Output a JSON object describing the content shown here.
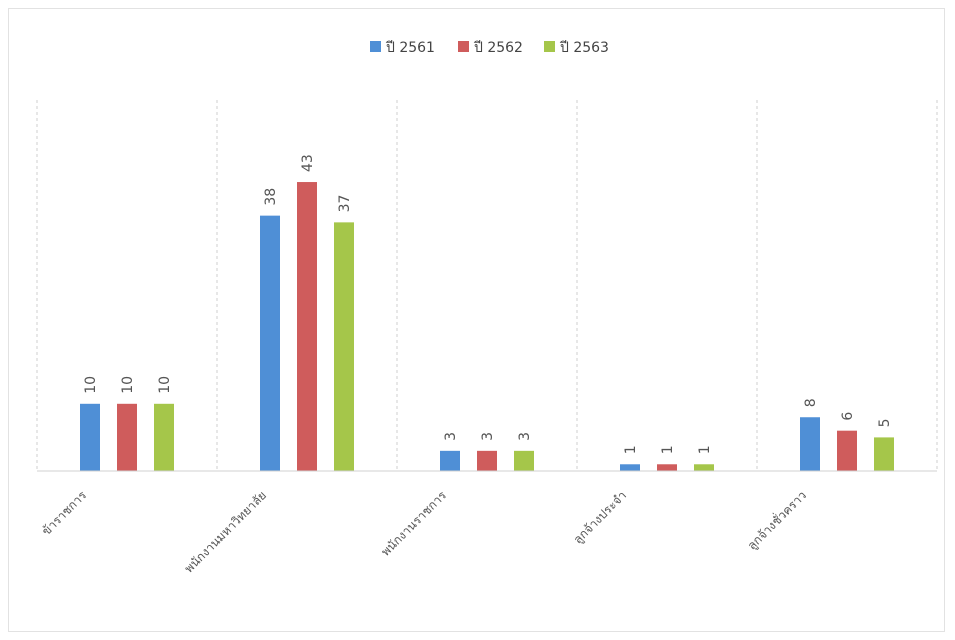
{
  "chart_data": {
    "type": "bar",
    "categories": [
      "ข้าราชการ",
      "พนักงานมหาวิทยาลัย",
      "พนักงานราชการ",
      "ลูกจ้างประจำ",
      "ลูกจ้างชั่วคราว"
    ],
    "series": [
      {
        "name": "ปี 2561",
        "values": [
          10,
          38,
          3,
          1,
          8
        ],
        "color": "#4f8fd6"
      },
      {
        "name": "ปี 2562",
        "values": [
          10,
          43,
          3,
          1,
          6
        ],
        "color": "#cf5c5c"
      },
      {
        "name": "ปี 2563",
        "values": [
          10,
          37,
          3,
          1,
          5
        ],
        "color": "#a5c64a"
      }
    ],
    "ylim": [
      0,
      50
    ],
    "legend": "top-center",
    "grid": "vertical-dashed-category-separators"
  }
}
